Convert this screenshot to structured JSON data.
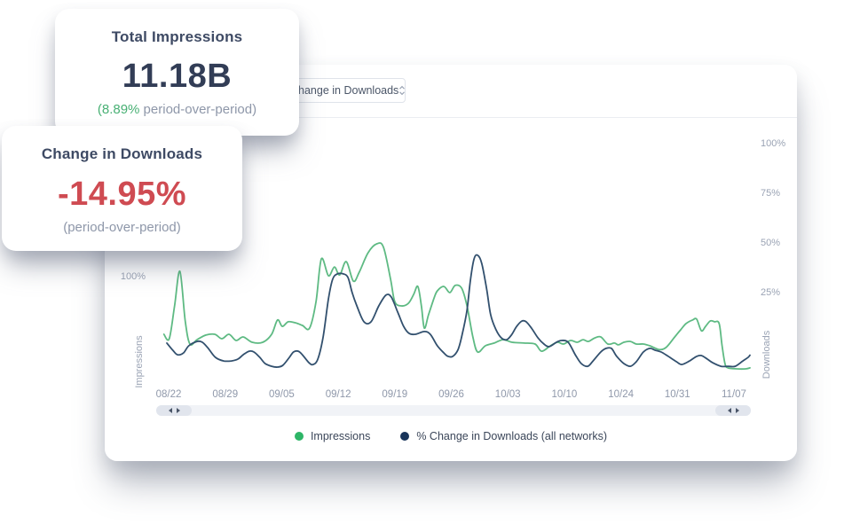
{
  "overlay_cards": {
    "total_impressions": {
      "title": "Total Impressions",
      "value": "11.18B",
      "subtext_highlight": "(8.89%",
      "subtext_rest": " period-over-period)"
    },
    "change_in_downloads": {
      "title": "Change in Downloads",
      "value": "-14.95%",
      "subtext": "(period-over-period)"
    }
  },
  "chart_panel": {
    "metric_select": {
      "value": "Change in Downloads"
    }
  },
  "icons": {
    "select_stepper": "up-down-chevrons",
    "scroll_left": "left-triangle",
    "scroll_right": "right-triangle",
    "legend_dot": "filled-circle"
  },
  "colors": {
    "green_line": "#5eba83",
    "green_dot": "#2eb567",
    "green_text": "#48b074",
    "navy_line": "#32506e",
    "navy_dot": "#18345a",
    "red_value": "#cf4b52",
    "gray_subtext": "#8e97a9",
    "axis_text": "#9aa3b4"
  },
  "chart_data": {
    "type": "line",
    "title": "",
    "grid": false,
    "legend_position": "bottom-center",
    "x_unit": "date (MM/DD)",
    "y_unit": "percent",
    "x_ticks": [
      "08/22",
      "08/29",
      "09/05",
      "09/12",
      "09/19",
      "09/26",
      "10/03",
      "10/10",
      "10/24",
      "10/31",
      "11/07"
    ],
    "left_axis": {
      "title": "Impressions",
      "ticks": [
        {
          "label": "100%",
          "y_frac": 0.572
        }
      ]
    },
    "right_axis": {
      "title": "Downloads",
      "ticks": [
        {
          "label": "100%",
          "value": 100
        },
        {
          "label": "75%",
          "value": 75
        },
        {
          "label": "50%",
          "value": 50
        },
        {
          "label": "25%",
          "value": 25
        }
      ]
    },
    "series": [
      {
        "name": "Impressions",
        "axis": "left",
        "color": "#5eba83",
        "dot_color": "#2eb567",
        "points": [
          [
            1.0,
            4.0
          ],
          [
            1.9,
            1.8
          ],
          [
            2.8,
            18.3
          ],
          [
            3.7,
            35.7
          ],
          [
            4.6,
            10.7
          ],
          [
            5.4,
            -0.9
          ],
          [
            6.6,
            1.3
          ],
          [
            8.1,
            3.6
          ],
          [
            9.6,
            4.0
          ],
          [
            10.8,
            1.8
          ],
          [
            12.0,
            4.0
          ],
          [
            13.2,
            0.9
          ],
          [
            14.4,
            2.7
          ],
          [
            15.9,
            0.0
          ],
          [
            17.7,
            0.0
          ],
          [
            19.2,
            4.0
          ],
          [
            20.2,
            11.2
          ],
          [
            21.0,
            8.0
          ],
          [
            22.0,
            10.3
          ],
          [
            23.2,
            9.8
          ],
          [
            24.4,
            8.5
          ],
          [
            25.6,
            7.1
          ],
          [
            26.7,
            20.5
          ],
          [
            27.6,
            42.0
          ],
          [
            28.8,
            33.5
          ],
          [
            29.8,
            37.9
          ],
          [
            30.7,
            33.9
          ],
          [
            31.8,
            40.6
          ],
          [
            33.0,
            30.8
          ],
          [
            34.0,
            35.3
          ],
          [
            35.5,
            45.1
          ],
          [
            37.0,
            49.6
          ],
          [
            38.1,
            47.8
          ],
          [
            39.3,
            31.7
          ],
          [
            40.0,
            20.5
          ],
          [
            41.1,
            18.3
          ],
          [
            42.3,
            19.6
          ],
          [
            43.2,
            24.1
          ],
          [
            43.9,
            28.1
          ],
          [
            44.5,
            18.3
          ],
          [
            45.0,
            7.1
          ],
          [
            45.7,
            13.8
          ],
          [
            46.6,
            21.9
          ],
          [
            47.2,
            25.9
          ],
          [
            48.3,
            28.1
          ],
          [
            49.3,
            25.0
          ],
          [
            50.2,
            28.6
          ],
          [
            51.3,
            27.2
          ],
          [
            52.2,
            18.3
          ],
          [
            53.2,
            2.7
          ],
          [
            54.0,
            -4.9
          ],
          [
            55.3,
            -1.8
          ],
          [
            56.8,
            -0.4
          ],
          [
            58.3,
            1.3
          ],
          [
            59.8,
            0.0
          ],
          [
            61.8,
            -0.4
          ],
          [
            63.7,
            -0.9
          ],
          [
            64.8,
            -4.5
          ],
          [
            66.3,
            -1.8
          ],
          [
            67.5,
            0.0
          ],
          [
            68.5,
            -0.9
          ],
          [
            69.7,
            0.9
          ],
          [
            70.8,
            0.0
          ],
          [
            71.8,
            1.3
          ],
          [
            72.7,
            0.4
          ],
          [
            73.8,
            2.2
          ],
          [
            74.8,
            2.7
          ],
          [
            76.0,
            -0.9
          ],
          [
            77.1,
            -0.4
          ],
          [
            77.8,
            -1.3
          ],
          [
            78.7,
            0.0
          ],
          [
            79.8,
            0.4
          ],
          [
            80.8,
            -0.9
          ],
          [
            82.0,
            -0.9
          ],
          [
            83.1,
            -1.8
          ],
          [
            84.6,
            -3.6
          ],
          [
            85.8,
            -2.7
          ],
          [
            87.3,
            2.7
          ],
          [
            88.3,
            6.3
          ],
          [
            89.2,
            9.4
          ],
          [
            90.3,
            11.2
          ],
          [
            91.0,
            11.6
          ],
          [
            91.8,
            5.8
          ],
          [
            92.5,
            8.0
          ],
          [
            93.3,
            10.7
          ],
          [
            94.0,
            10.3
          ],
          [
            94.8,
            9.4
          ],
          [
            95.3,
            -2.0
          ],
          [
            95.8,
            -11.0
          ],
          [
            96.3,
            -12.9
          ],
          [
            97.8,
            -13.4
          ],
          [
            99.3,
            -13.4
          ],
          [
            100.0,
            -12.9
          ]
        ]
      },
      {
        "name": "% Change in Downloads (all networks)",
        "axis": "right",
        "color": "#32506e",
        "dot_color": "#18345a",
        "points": [
          [
            1.5,
            -0.4
          ],
          [
            2.5,
            -4.0
          ],
          [
            3.3,
            -6.3
          ],
          [
            4.3,
            -5.4
          ],
          [
            5.2,
            -1.8
          ],
          [
            6.6,
            0.4
          ],
          [
            7.5,
            0.0
          ],
          [
            8.5,
            -3.1
          ],
          [
            9.7,
            -7.6
          ],
          [
            11.1,
            -9.4
          ],
          [
            12.4,
            -9.4
          ],
          [
            13.5,
            -8.5
          ],
          [
            14.4,
            -6.3
          ],
          [
            15.4,
            -4.5
          ],
          [
            16.2,
            -4.9
          ],
          [
            17.2,
            -7.6
          ],
          [
            18.1,
            -10.7
          ],
          [
            19.2,
            -12.1
          ],
          [
            20.2,
            -12.5
          ],
          [
            21.1,
            -11.6
          ],
          [
            22.2,
            -7.6
          ],
          [
            22.9,
            -4.9
          ],
          [
            23.7,
            -4.5
          ],
          [
            24.4,
            -6.3
          ],
          [
            25.5,
            -10.3
          ],
          [
            26.2,
            -11.2
          ],
          [
            27.0,
            -8.5
          ],
          [
            27.9,
            2.7
          ],
          [
            28.8,
            21.9
          ],
          [
            29.5,
            31.7
          ],
          [
            30.3,
            34.4
          ],
          [
            31.3,
            34.4
          ],
          [
            32.1,
            32.6
          ],
          [
            32.8,
            25.0
          ],
          [
            33.6,
            18.3
          ],
          [
            34.8,
            10.3
          ],
          [
            36.0,
            10.3
          ],
          [
            37.3,
            18.3
          ],
          [
            38.5,
            23.7
          ],
          [
            39.4,
            22.8
          ],
          [
            40.5,
            15.2
          ],
          [
            41.5,
            8.0
          ],
          [
            42.4,
            4.5
          ],
          [
            43.5,
            4.0
          ],
          [
            45.0,
            5.4
          ],
          [
            46.0,
            4.0
          ],
          [
            47.2,
            -1.8
          ],
          [
            48.3,
            -5.4
          ],
          [
            49.0,
            -7.1
          ],
          [
            49.8,
            -7.1
          ],
          [
            50.7,
            -3.6
          ],
          [
            51.4,
            4.0
          ],
          [
            52.2,
            16.1
          ],
          [
            52.8,
            31.7
          ],
          [
            53.4,
            42.0
          ],
          [
            54.0,
            43.8
          ],
          [
            54.7,
            39.7
          ],
          [
            55.5,
            27.2
          ],
          [
            56.2,
            13.8
          ],
          [
            57.1,
            6.3
          ],
          [
            58.0,
            2.2
          ],
          [
            58.9,
            1.3
          ],
          [
            59.7,
            3.6
          ],
          [
            60.6,
            8.0
          ],
          [
            61.5,
            10.7
          ],
          [
            62.2,
            10.3
          ],
          [
            63.1,
            7.1
          ],
          [
            64.2,
            2.2
          ],
          [
            65.2,
            -0.9
          ],
          [
            66.1,
            -2.2
          ],
          [
            67.3,
            0.0
          ],
          [
            68.2,
            0.9
          ],
          [
            69.3,
            0.0
          ],
          [
            70.5,
            -6.3
          ],
          [
            71.5,
            -10.7
          ],
          [
            72.6,
            -12.1
          ],
          [
            73.5,
            -9.4
          ],
          [
            74.8,
            -4.9
          ],
          [
            75.7,
            -3.1
          ],
          [
            76.6,
            -3.1
          ],
          [
            77.5,
            -7.1
          ],
          [
            78.7,
            -10.7
          ],
          [
            79.8,
            -12.1
          ],
          [
            80.8,
            -9.8
          ],
          [
            82.0,
            -4.9
          ],
          [
            83.1,
            -3.1
          ],
          [
            84.0,
            -4.0
          ],
          [
            85.0,
            -4.9
          ],
          [
            86.2,
            -7.1
          ],
          [
            87.6,
            -9.8
          ],
          [
            88.5,
            -11.2
          ],
          [
            89.8,
            -9.4
          ],
          [
            91.0,
            -7.1
          ],
          [
            91.8,
            -6.7
          ],
          [
            92.8,
            -8.5
          ],
          [
            93.7,
            -10.3
          ],
          [
            95.1,
            -12.1
          ],
          [
            96.3,
            -12.1
          ],
          [
            97.5,
            -12.1
          ],
          [
            98.8,
            -9.4
          ],
          [
            99.7,
            -7.6
          ],
          [
            100.0,
            -6.5
          ]
        ]
      }
    ]
  }
}
